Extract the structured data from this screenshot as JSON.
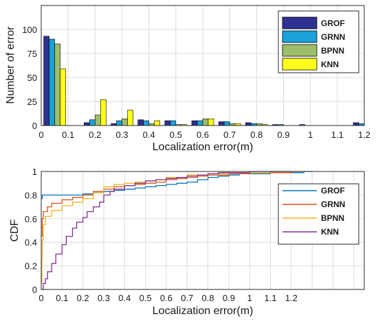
{
  "chart_data": [
    {
      "type": "bar",
      "title": "",
      "xlabel": "Localization error(m)",
      "ylabel": "Number of error",
      "xlim": [
        0,
        1.2
      ],
      "ylim": [
        0,
        125
      ],
      "xticks": [
        "0",
        "0.1",
        "0.2",
        "0.3",
        "0.4",
        "0.5",
        "0.6",
        "0.7",
        "0.8",
        "0.9",
        "1",
        "1.1",
        "1.2"
      ],
      "yticks": [
        "0",
        "25",
        "50",
        "75",
        "100"
      ],
      "grid": true,
      "legend_position": "top-right",
      "categories": [
        "0.05",
        "0.2",
        "0.3",
        "0.4",
        "0.5",
        "0.6",
        "0.7",
        "0.8",
        "0.9",
        "1",
        "1.1",
        "1.2"
      ],
      "series": [
        {
          "name": "GROF",
          "color": "#2e3192",
          "values": [
            93,
            3,
            2,
            6,
            5,
            5,
            4,
            3,
            1,
            1,
            0,
            3
          ]
        },
        {
          "name": "GRNN",
          "color": "#1aa1d8",
          "values": [
            90,
            6,
            5,
            5,
            5,
            5,
            4,
            2,
            1,
            0,
            0,
            2
          ]
        },
        {
          "name": "BPNN",
          "color": "#9dbe6b",
          "values": [
            85,
            11,
            7,
            2,
            1,
            7,
            2,
            2,
            0,
            0,
            0,
            0
          ]
        },
        {
          "name": "KNN",
          "color": "#ffff1a",
          "values": [
            59,
            27,
            16,
            5,
            1,
            7,
            2,
            1,
            0,
            0,
            0,
            0
          ]
        }
      ]
    },
    {
      "type": "line",
      "title": "",
      "xlabel": "Localization error(m)",
      "ylabel": "CDF",
      "xlim": [
        0,
        1.55
      ],
      "ylim": [
        0,
        1
      ],
      "xticks": [
        "0",
        "0.1",
        "0.2",
        "0.3",
        "0.4",
        "0.5",
        "0.6",
        "0.7",
        "0.8",
        "0.9",
        "1",
        "1.1",
        "1.2"
      ],
      "yticks": [
        "0",
        "0.2",
        "0.4",
        "0.6",
        "0.8",
        "1"
      ],
      "grid": true,
      "legend_position": "top-right",
      "series": [
        {
          "name": "GROF",
          "color": "#0072bd",
          "x": [
            0,
            0.005,
            0.01,
            0.1,
            0.2,
            0.25,
            0.3,
            0.35,
            0.4,
            0.45,
            0.5,
            0.55,
            0.6,
            0.65,
            0.7,
            0.75,
            0.8,
            0.85,
            0.9,
            0.95,
            1.0,
            1.05,
            1.1,
            1.15,
            1.2,
            1.22,
            1.26,
            1.3
          ],
          "y": [
            0.77,
            0.8,
            0.8,
            0.8,
            0.81,
            0.82,
            0.83,
            0.84,
            0.85,
            0.86,
            0.87,
            0.88,
            0.89,
            0.9,
            0.91,
            0.93,
            0.95,
            0.96,
            0.97,
            0.98,
            0.98,
            0.98,
            0.99,
            0.99,
            0.99,
            0.99,
            1.0,
            1.0
          ]
        },
        {
          "name": "GRNN",
          "color": "#d95319",
          "x": [
            0,
            0.005,
            0.01,
            0.03,
            0.05,
            0.1,
            0.15,
            0.2,
            0.25,
            0.3,
            0.35,
            0.4,
            0.45,
            0.5,
            0.55,
            0.6,
            0.65,
            0.7,
            0.75,
            0.8,
            0.9,
            1.0,
            1.1,
            1.2,
            1.25
          ],
          "y": [
            0.45,
            0.6,
            0.66,
            0.7,
            0.73,
            0.76,
            0.78,
            0.8,
            0.83,
            0.85,
            0.87,
            0.88,
            0.89,
            0.9,
            0.91,
            0.93,
            0.94,
            0.95,
            0.96,
            0.97,
            0.98,
            0.99,
            0.99,
            1.0,
            1.0
          ]
        },
        {
          "name": "BPNN",
          "color": "#edb120",
          "x": [
            0,
            0.003,
            0.005,
            0.01,
            0.02,
            0.05,
            0.1,
            0.15,
            0.2,
            0.25,
            0.3,
            0.35,
            0.4,
            0.45,
            0.5,
            0.55,
            0.6,
            0.7,
            0.8,
            0.9,
            1.0,
            1.1,
            1.2
          ],
          "y": [
            0.05,
            0.25,
            0.42,
            0.55,
            0.62,
            0.67,
            0.71,
            0.74,
            0.77,
            0.82,
            0.87,
            0.89,
            0.9,
            0.91,
            0.92,
            0.93,
            0.95,
            0.97,
            0.98,
            0.99,
            0.99,
            1.0,
            1.0
          ]
        },
        {
          "name": "KNN",
          "color": "#7e2f8e",
          "x": [
            0,
            0.01,
            0.02,
            0.03,
            0.05,
            0.07,
            0.1,
            0.12,
            0.15,
            0.17,
            0.2,
            0.22,
            0.25,
            0.28,
            0.3,
            0.33,
            0.35,
            0.4,
            0.45,
            0.5,
            0.55,
            0.6,
            0.65,
            0.7,
            0.75,
            0.8,
            0.85,
            0.9,
            1.0,
            1.1,
            1.2
          ],
          "y": [
            0.0,
            0.05,
            0.09,
            0.15,
            0.22,
            0.3,
            0.38,
            0.45,
            0.52,
            0.57,
            0.61,
            0.66,
            0.7,
            0.74,
            0.8,
            0.83,
            0.85,
            0.88,
            0.9,
            0.92,
            0.93,
            0.94,
            0.95,
            0.96,
            0.97,
            0.98,
            0.99,
            0.99,
            1.0,
            1.0,
            1.0
          ]
        }
      ]
    }
  ]
}
